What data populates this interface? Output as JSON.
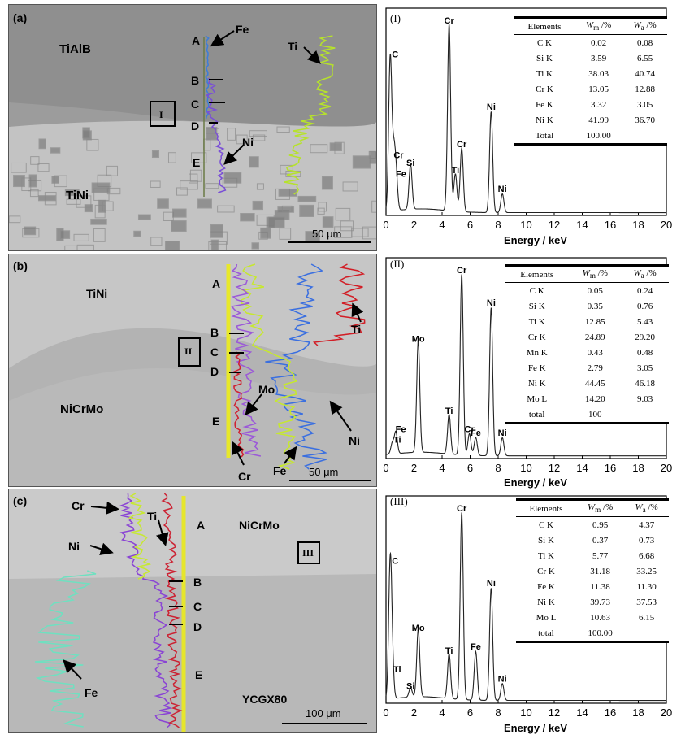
{
  "panels": [
    {
      "tag": "(a)",
      "phase_top": "TiAlB",
      "phase_bottom": "TiNi",
      "box_label": "I",
      "points": [
        "A",
        "B",
        "C",
        "D",
        "E"
      ],
      "traces": [
        "Fe",
        "Ti",
        "Ni"
      ],
      "scale": "50 μm",
      "colors": {
        "bg_top": "#9a9a9a",
        "bg_bottom": "#bdbdbd"
      }
    },
    {
      "tag": "(b)",
      "phase_top": "TiNi",
      "phase_bottom": "NiCrMo",
      "box_label": "II",
      "points": [
        "A",
        "B",
        "C",
        "D",
        "E"
      ],
      "traces": [
        "Ti",
        "Mo",
        "Ni",
        "Cr",
        "Fe"
      ],
      "scale": "50 μm",
      "colors": {
        "bg_top": "#c4c4c4",
        "bg_bottom": "#b8b8b8"
      }
    },
    {
      "tag": "(c)",
      "phase_top": "NiCrMo",
      "phase_bottom": "YCGX80",
      "box_label": "III",
      "points": [
        "A",
        "B",
        "C",
        "D",
        "E"
      ],
      "traces": [
        "Cr",
        "Ti",
        "Ni",
        "Fe"
      ],
      "scale": "100 μm",
      "colors": {
        "bg_top": "#c9c9c9",
        "bg_bottom": "#b4b4b4"
      }
    }
  ],
  "eds": [
    {
      "tag": "(I)",
      "xlabel": "Energy / keV",
      "xticks": [
        "0",
        "2",
        "4",
        "6",
        "8",
        "10",
        "12",
        "14",
        "16",
        "18",
        "20"
      ],
      "peaks": [
        {
          "label": "C",
          "x": 0.3,
          "h": 0.82
        },
        {
          "label": "Cr",
          "x": 0.55,
          "h": 0.28
        },
        {
          "label": "Fe",
          "x": 0.72,
          "h": 0.18
        },
        {
          "label": "Si",
          "x": 1.75,
          "h": 0.24
        },
        {
          "label": "Ti",
          "x": 4.95,
          "h": 0.2
        },
        {
          "label": "Cr",
          "x": 5.4,
          "h": 0.34
        },
        {
          "label": "Cr",
          "x": 4.5,
          "h": 1.0
        },
        {
          "label": "Ni",
          "x": 7.5,
          "h": 0.54
        },
        {
          "label": "Ni",
          "x": 8.3,
          "h": 0.1
        }
      ],
      "table": {
        "headers": [
          "Elements",
          "W_m /%",
          "W_a /%"
        ],
        "header_parts": [
          [
            "W",
            "m"
          ],
          [
            "W",
            "a"
          ]
        ],
        "rows": [
          [
            "C K",
            "0.02",
            "0.08"
          ],
          [
            "Si K",
            "3.59",
            "6.55"
          ],
          [
            "Ti K",
            "38.03",
            "40.74"
          ],
          [
            "Cr K",
            "13.05",
            "12.88"
          ],
          [
            "Fe K",
            "3.32",
            "3.05"
          ],
          [
            "Ni K",
            "41.99",
            "36.70"
          ],
          [
            "Total",
            "100.00",
            ""
          ]
        ]
      }
    },
    {
      "tag": "(II)",
      "xlabel": "Energy / keV",
      "xticks": [
        "0",
        "2",
        "4",
        "6",
        "8",
        "10",
        "12",
        "14",
        "16",
        "18",
        "20"
      ],
      "peaks": [
        {
          "label": "Ti",
          "x": 0.45,
          "h": 0.06
        },
        {
          "label": "Fe",
          "x": 0.7,
          "h": 0.12
        },
        {
          "label": "Mo",
          "x": 2.3,
          "h": 0.62
        },
        {
          "label": "Ti",
          "x": 4.5,
          "h": 0.22
        },
        {
          "label": "Cr",
          "x": 5.4,
          "h": 1.0
        },
        {
          "label": "Cr",
          "x": 5.95,
          "h": 0.12
        },
        {
          "label": "Fe",
          "x": 6.4,
          "h": 0.1
        },
        {
          "label": "Ni",
          "x": 7.5,
          "h": 0.82
        },
        {
          "label": "Ni",
          "x": 8.3,
          "h": 0.1
        }
      ],
      "table": {
        "headers": [
          "Elements",
          "W_m /%",
          "W_a /%"
        ],
        "header_parts": [
          [
            "W",
            "m"
          ],
          [
            "W",
            "a"
          ]
        ],
        "rows": [
          [
            "C K",
            "0.05",
            "0.24"
          ],
          [
            "Si K",
            "0.35",
            "0.76"
          ],
          [
            "Ti K",
            "12.85",
            "5.43"
          ],
          [
            "Cr K",
            "24.89",
            "29.20"
          ],
          [
            "Mn K",
            "0.43",
            "0.48"
          ],
          [
            "Fe K",
            "2.79",
            "3.05"
          ],
          [
            "Ni K",
            "44.45",
            "46.18"
          ],
          [
            "Mo L",
            "14.20",
            "9.03"
          ],
          [
            "total",
            "100",
            ""
          ]
        ]
      }
    },
    {
      "tag": "(III)",
      "xlabel": "Energy / keV",
      "xticks": [
        "0",
        "2",
        "4",
        "6",
        "8",
        "10",
        "12",
        "14",
        "16",
        "18",
        "20"
      ],
      "peaks": [
        {
          "label": "C",
          "x": 0.3,
          "h": 0.72
        },
        {
          "label": "Ti",
          "x": 0.45,
          "h": 0.14
        },
        {
          "label": "Si",
          "x": 1.75,
          "h": 0.05
        },
        {
          "label": "Mo",
          "x": 2.3,
          "h": 0.36
        },
        {
          "label": "Ti",
          "x": 4.5,
          "h": 0.24
        },
        {
          "label": "Cr",
          "x": 5.4,
          "h": 1.0
        },
        {
          "label": "Fe",
          "x": 6.4,
          "h": 0.26
        },
        {
          "label": "Ni",
          "x": 7.5,
          "h": 0.6
        },
        {
          "label": "Ni",
          "x": 8.3,
          "h": 0.09
        }
      ],
      "table": {
        "headers": [
          "Elements",
          "W_m /%",
          "W_a /%"
        ],
        "header_parts": [
          [
            "W",
            "m"
          ],
          [
            "W",
            "a"
          ]
        ],
        "rows": [
          [
            "C K",
            "0.95",
            "4.37"
          ],
          [
            "Si K",
            "0.37",
            "0.73"
          ],
          [
            "Ti K",
            "5.77",
            "6.68"
          ],
          [
            "Cr K",
            "31.18",
            "33.25"
          ],
          [
            "Fe K",
            "11.38",
            "11.30"
          ],
          [
            "Ni K",
            "39.73",
            "37.53"
          ],
          [
            "Mo L",
            "10.63",
            "6.15"
          ],
          [
            "total",
            "100.00",
            ""
          ]
        ]
      }
    }
  ],
  "trace_colors": {
    "Fe": "#3b7dd8",
    "Ti": "#b6e22b",
    "Ni": "#7a4fd6",
    "Cr": "#d02030",
    "Mo": "#9b59d8",
    "Fe_c": "#6fe0c0",
    "Ti_c": "#cc2233",
    "Ni_c": "#8a44d4",
    "Cr_c": "#c7e832",
    "Fe_b": "#c6e82e",
    "Ni_b": "#3a6fe0",
    "Ti_b": "#d21e26"
  }
}
